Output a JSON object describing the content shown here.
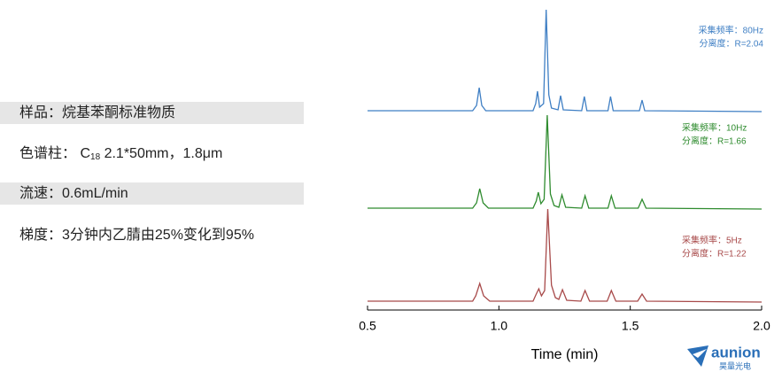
{
  "info": {
    "sample": "样品：烷基苯酮标准物质",
    "column_prefix": "色谱柱：  C",
    "column_sub": "18",
    "column_rest": " 2.1*50mm，1.8μm",
    "flow": "流速：0.6mL/min",
    "gradient": "梯度：3分钟内乙腈由25%变化到95%"
  },
  "logo": {
    "name": "aunion",
    "sub": "昊量光电"
  },
  "chart_data": [
    {
      "type": "line",
      "color": "#3f7fc4",
      "annotations": [
        "采集频率：80Hz",
        "分离度：R=2.04"
      ],
      "xlim": [
        0.5,
        2.0
      ],
      "ylim": [
        0,
        120
      ],
      "x": [
        0.5,
        0.9,
        0.915,
        0.925,
        0.935,
        0.95,
        1.13,
        1.14,
        1.147,
        1.155,
        1.17,
        1.18,
        1.19,
        1.2,
        1.225,
        1.235,
        1.245,
        1.315,
        1.325,
        1.335,
        1.415,
        1.425,
        1.435,
        1.535,
        1.545,
        1.555,
        2.0
      ],
      "values": [
        2,
        2,
        8,
        28,
        8,
        2,
        2,
        10,
        24,
        6,
        10,
        116,
        20,
        5,
        3,
        19,
        3,
        2,
        18,
        2,
        2,
        18,
        2,
        2,
        14,
        2,
        1
      ]
    },
    {
      "type": "line",
      "color": "#2e8b2e",
      "annotations": [
        "采集频率：10Hz",
        "分离度：R=1.66"
      ],
      "xlim": [
        0.5,
        2.0
      ],
      "ylim": [
        0,
        120
      ],
      "x": [
        0.5,
        0.9,
        0.915,
        0.927,
        0.94,
        0.96,
        1.13,
        1.142,
        1.15,
        1.16,
        1.172,
        1.184,
        1.196,
        1.21,
        1.228,
        1.24,
        1.254,
        1.315,
        1.328,
        1.342,
        1.415,
        1.428,
        1.442,
        1.53,
        1.545,
        1.56,
        2.0
      ],
      "values": [
        2,
        2,
        8,
        24,
        8,
        2,
        2,
        10,
        20,
        7,
        12,
        107,
        18,
        5,
        3,
        17,
        3,
        2,
        16,
        2,
        2,
        16,
        2,
        2,
        12,
        2,
        1
      ]
    },
    {
      "type": "line",
      "color": "#a84a4a",
      "annotations": [
        "采集频率：5Hz",
        "分离度：R=1.22"
      ],
      "xlim": [
        0.5,
        2.0
      ],
      "ylim": [
        0,
        120
      ],
      "x": [
        0.5,
        0.9,
        0.912,
        0.927,
        0.942,
        0.965,
        1.13,
        1.142,
        1.152,
        1.162,
        1.174,
        1.186,
        1.2,
        1.215,
        1.228,
        1.242,
        1.258,
        1.312,
        1.328,
        1.345,
        1.412,
        1.428,
        1.445,
        1.528,
        1.545,
        1.562,
        2.0
      ],
      "values": [
        2,
        2,
        8,
        22,
        8,
        2,
        2,
        10,
        16,
        8,
        14,
        106,
        20,
        6,
        4,
        15,
        3,
        2,
        14,
        2,
        2,
        14,
        2,
        2,
        10,
        2,
        1
      ],
      "xlabel": "Time (min)",
      "xticks": [
        0.5,
        {
          "value": 1.0,
          "label": "1.0"
        },
        1.5,
        {
          "value": 2.0,
          "label": "2.0"
        }
      ]
    }
  ]
}
